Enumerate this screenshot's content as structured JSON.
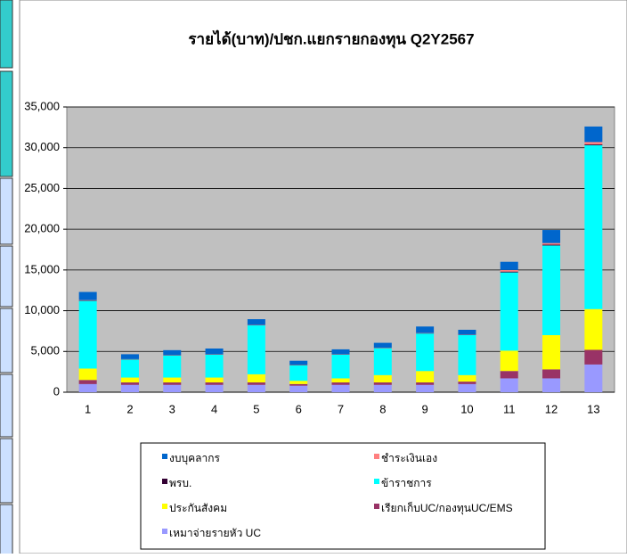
{
  "chart_data": {
    "type": "bar",
    "stacked": true,
    "title": "รายได้(บาท)/ปชก.แยกรายกองทุน Q2Y2567",
    "categories": [
      "1",
      "2",
      "3",
      "4",
      "5",
      "6",
      "7",
      "8",
      "9",
      "10",
      "11",
      "12",
      "13"
    ],
    "series": [
      {
        "name": "งบบุคลากร",
        "color": "#0066cc",
        "values": [
          1000,
          600,
          600,
          700,
          700,
          500,
          600,
          600,
          800,
          600,
          1000,
          1600,
          1900
        ]
      },
      {
        "name": "ชำระเงินเอง",
        "color": "#ff8080",
        "values": [
          50,
          30,
          30,
          30,
          30,
          30,
          30,
          30,
          30,
          30,
          200,
          200,
          300
        ]
      },
      {
        "name": "พรบ.",
        "color": "#330033",
        "values": [
          50,
          30,
          30,
          30,
          30,
          30,
          30,
          30,
          30,
          30,
          100,
          100,
          100
        ]
      },
      {
        "name": "ข้าราชการ",
        "color": "#00ffff",
        "values": [
          8300,
          2200,
          2700,
          2800,
          6000,
          1900,
          2900,
          3300,
          4600,
          4900,
          9600,
          11000,
          20100
        ]
      },
      {
        "name": "ประกันสังคม",
        "color": "#ffff00",
        "values": [
          1400,
          600,
          600,
          600,
          1000,
          400,
          500,
          900,
          1400,
          800,
          2500,
          4200,
          5000
        ]
      },
      {
        "name": "เรียกเก็บUC/กองทุนUC/EMS",
        "color": "#993366",
        "values": [
          500,
          300,
          300,
          300,
          300,
          200,
          300,
          300,
          300,
          300,
          900,
          1100,
          1800
        ]
      },
      {
        "name": "เหมาจ่ายรายหัว UC",
        "color": "#9999ff",
        "values": [
          1000,
          900,
          900,
          900,
          900,
          800,
          900,
          900,
          900,
          1000,
          1700,
          1700,
          3400
        ]
      }
    ],
    "ylim": [
      0,
      35000
    ],
    "yticks": [
      0,
      {
        "value": 5000,
        "label": "5,000"
      },
      {
        "value": 10000,
        "label": "10,000"
      },
      {
        "value": 15000,
        "label": "15,000"
      },
      {
        "value": 20000,
        "label": "20,000"
      },
      {
        "value": 25000,
        "label": "25,000"
      },
      {
        "value": 30000,
        "label": "30,000"
      },
      {
        "value": 35000,
        "label": "35,000"
      }
    ],
    "grid": true,
    "legend": "bottom"
  }
}
